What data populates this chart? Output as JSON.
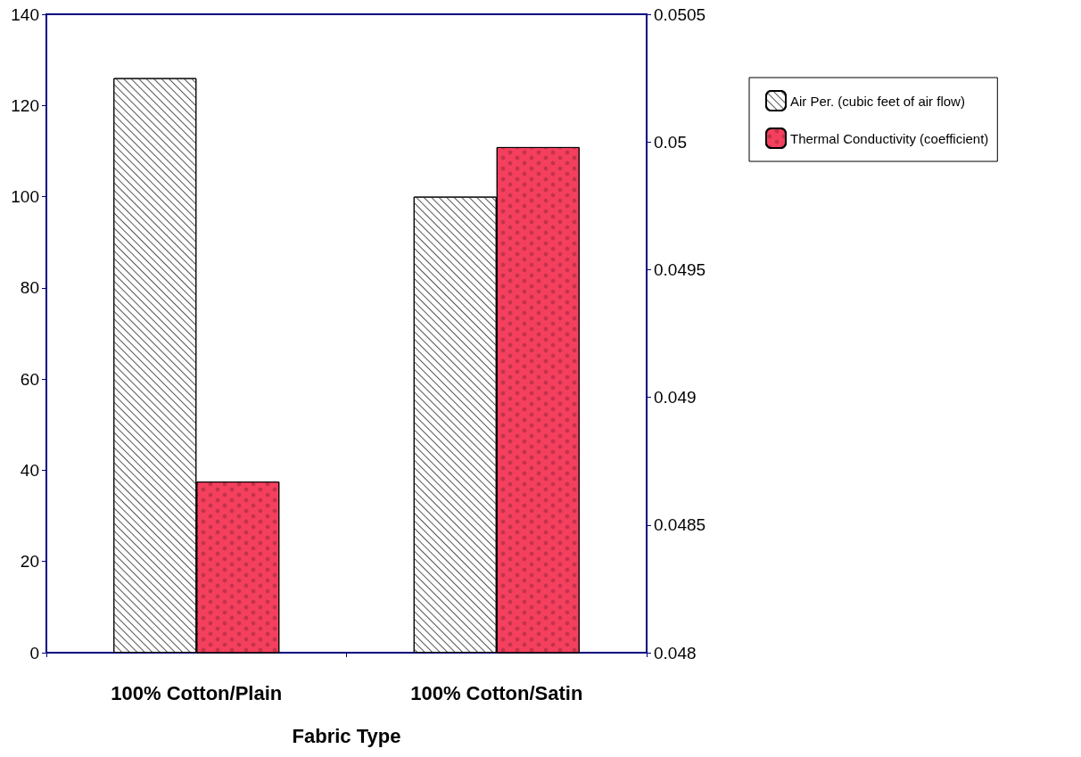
{
  "chart_data": {
    "type": "bar",
    "xlabel": "Fabric Type",
    "categories": [
      "100% Cotton/Plain",
      "100% Cotton/Satin"
    ],
    "series": [
      {
        "name": "Air Per. (cubic feet of air flow)",
        "color": "#ffffff",
        "values": [
          126,
          100
        ]
      },
      {
        "name": "Thermal Conductivity (coefficient)",
        "color": "#f4405e",
        "values": [
          0.04867,
          0.04998
        ],
        "axis": "y2"
      }
    ],
    "ylim": [
      0,
      140
    ],
    "yticks": [
      0,
      20,
      40,
      60,
      80,
      100,
      120,
      140
    ],
    "y2lim": [
      0.048,
      0.0505
    ],
    "y2ticks": [
      0.048,
      0.0485,
      0.049,
      0.0495,
      0.05,
      0.0505
    ],
    "grid": false,
    "legend": "right"
  }
}
